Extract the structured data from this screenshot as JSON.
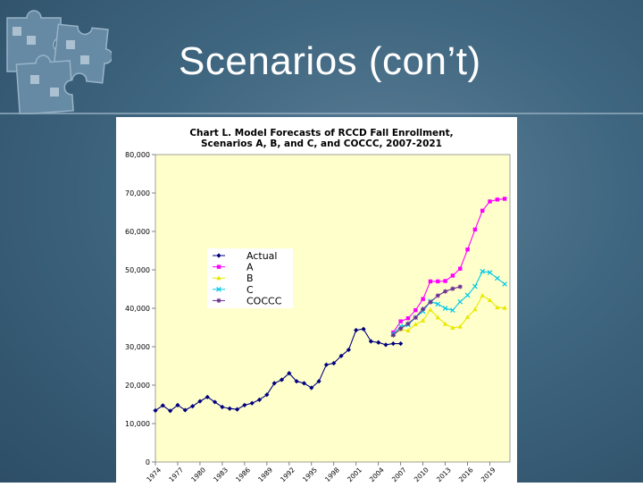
{
  "slide": {
    "title": "Scenarios (con’t)"
  },
  "chart_data": {
    "type": "line",
    "title": "Chart L. Model Forecasts of RCCD Fall Enrollment,",
    "subtitle": "Scenarios A, B, and C, and COCCC, 2007-2021",
    "xlabel": "",
    "ylabel": "",
    "ylim": [
      0,
      80000
    ],
    "yticks": [
      "80,000",
      "70,000",
      "60,000",
      "50,000",
      "40,000",
      "30,000",
      "20,000",
      "10,000",
      "0"
    ],
    "x_tick_labels": [
      "1974",
      "1977",
      "1980",
      "1983",
      "1986",
      "1989",
      "1992",
      "1995",
      "1998",
      "2001",
      "2004",
      "2007",
      "2010",
      "2013",
      "2016",
      "2019"
    ],
    "x_start": 1974,
    "legend_position": "left-middle",
    "plot_background": "#ffffcc",
    "series": [
      {
        "name": "Actual",
        "color": "#000080",
        "marker": "diamond",
        "x": [
          1974,
          1975,
          1976,
          1977,
          1978,
          1979,
          1980,
          1981,
          1982,
          1983,
          1984,
          1985,
          1986,
          1987,
          1988,
          1989,
          1990,
          1991,
          1992,
          1993,
          1994,
          1995,
          1996,
          1997,
          1998,
          1999,
          2000,
          2001,
          2002,
          2003,
          2004,
          2005,
          2006,
          2007
        ],
        "y": [
          13400,
          14700,
          13300,
          14800,
          13500,
          14500,
          15800,
          16900,
          15600,
          14300,
          13900,
          13700,
          14800,
          15300,
          16200,
          17500,
          20500,
          21400,
          23100,
          21000,
          20500,
          19300,
          21000,
          25300,
          25700,
          27600,
          29200,
          34300,
          34600,
          31400,
          31100,
          30500,
          30800,
          30800
        ]
      },
      {
        "name": "A",
        "color": "#ff00ff",
        "marker": "square",
        "x": [
          2006,
          2007,
          2008,
          2009,
          2010,
          2011,
          2012,
          2013,
          2014,
          2015,
          2016,
          2017,
          2018,
          2019,
          2020,
          2021
        ],
        "y": [
          33700,
          36600,
          37400,
          39500,
          42400,
          47000,
          47000,
          47100,
          48500,
          50300,
          55300,
          60500,
          65400,
          67800,
          68300,
          68500
        ]
      },
      {
        "name": "B",
        "color": "#e8e800",
        "marker": "triangle",
        "x": [
          2006,
          2007,
          2008,
          2009,
          2010,
          2011,
          2012,
          2013,
          2014,
          2015,
          2016,
          2017,
          2018,
          2019,
          2020,
          2021
        ],
        "y": [
          33100,
          34500,
          34200,
          35800,
          36800,
          39600,
          37600,
          35900,
          34900,
          35200,
          37700,
          39700,
          43300,
          42100,
          40200,
          40100
        ]
      },
      {
        "name": "C",
        "color": "#00c8e8",
        "marker": "x",
        "x": [
          2006,
          2007,
          2008,
          2009,
          2010,
          2011,
          2012,
          2013,
          2014,
          2015,
          2016,
          2017,
          2018,
          2019,
          2020,
          2021
        ],
        "y": [
          33300,
          35300,
          35700,
          37600,
          39200,
          41800,
          41100,
          40000,
          39500,
          41700,
          43400,
          45700,
          49600,
          49300,
          47800,
          46300
        ]
      },
      {
        "name": "COCCC",
        "color": "#6a2c91",
        "marker": "star",
        "x": [
          2006,
          2007,
          2008,
          2009,
          2010,
          2011,
          2012,
          2013,
          2014,
          2015
        ],
        "y": [
          33000,
          34700,
          36000,
          37600,
          39800,
          41600,
          43300,
          44400,
          45100,
          45600
        ]
      }
    ]
  }
}
